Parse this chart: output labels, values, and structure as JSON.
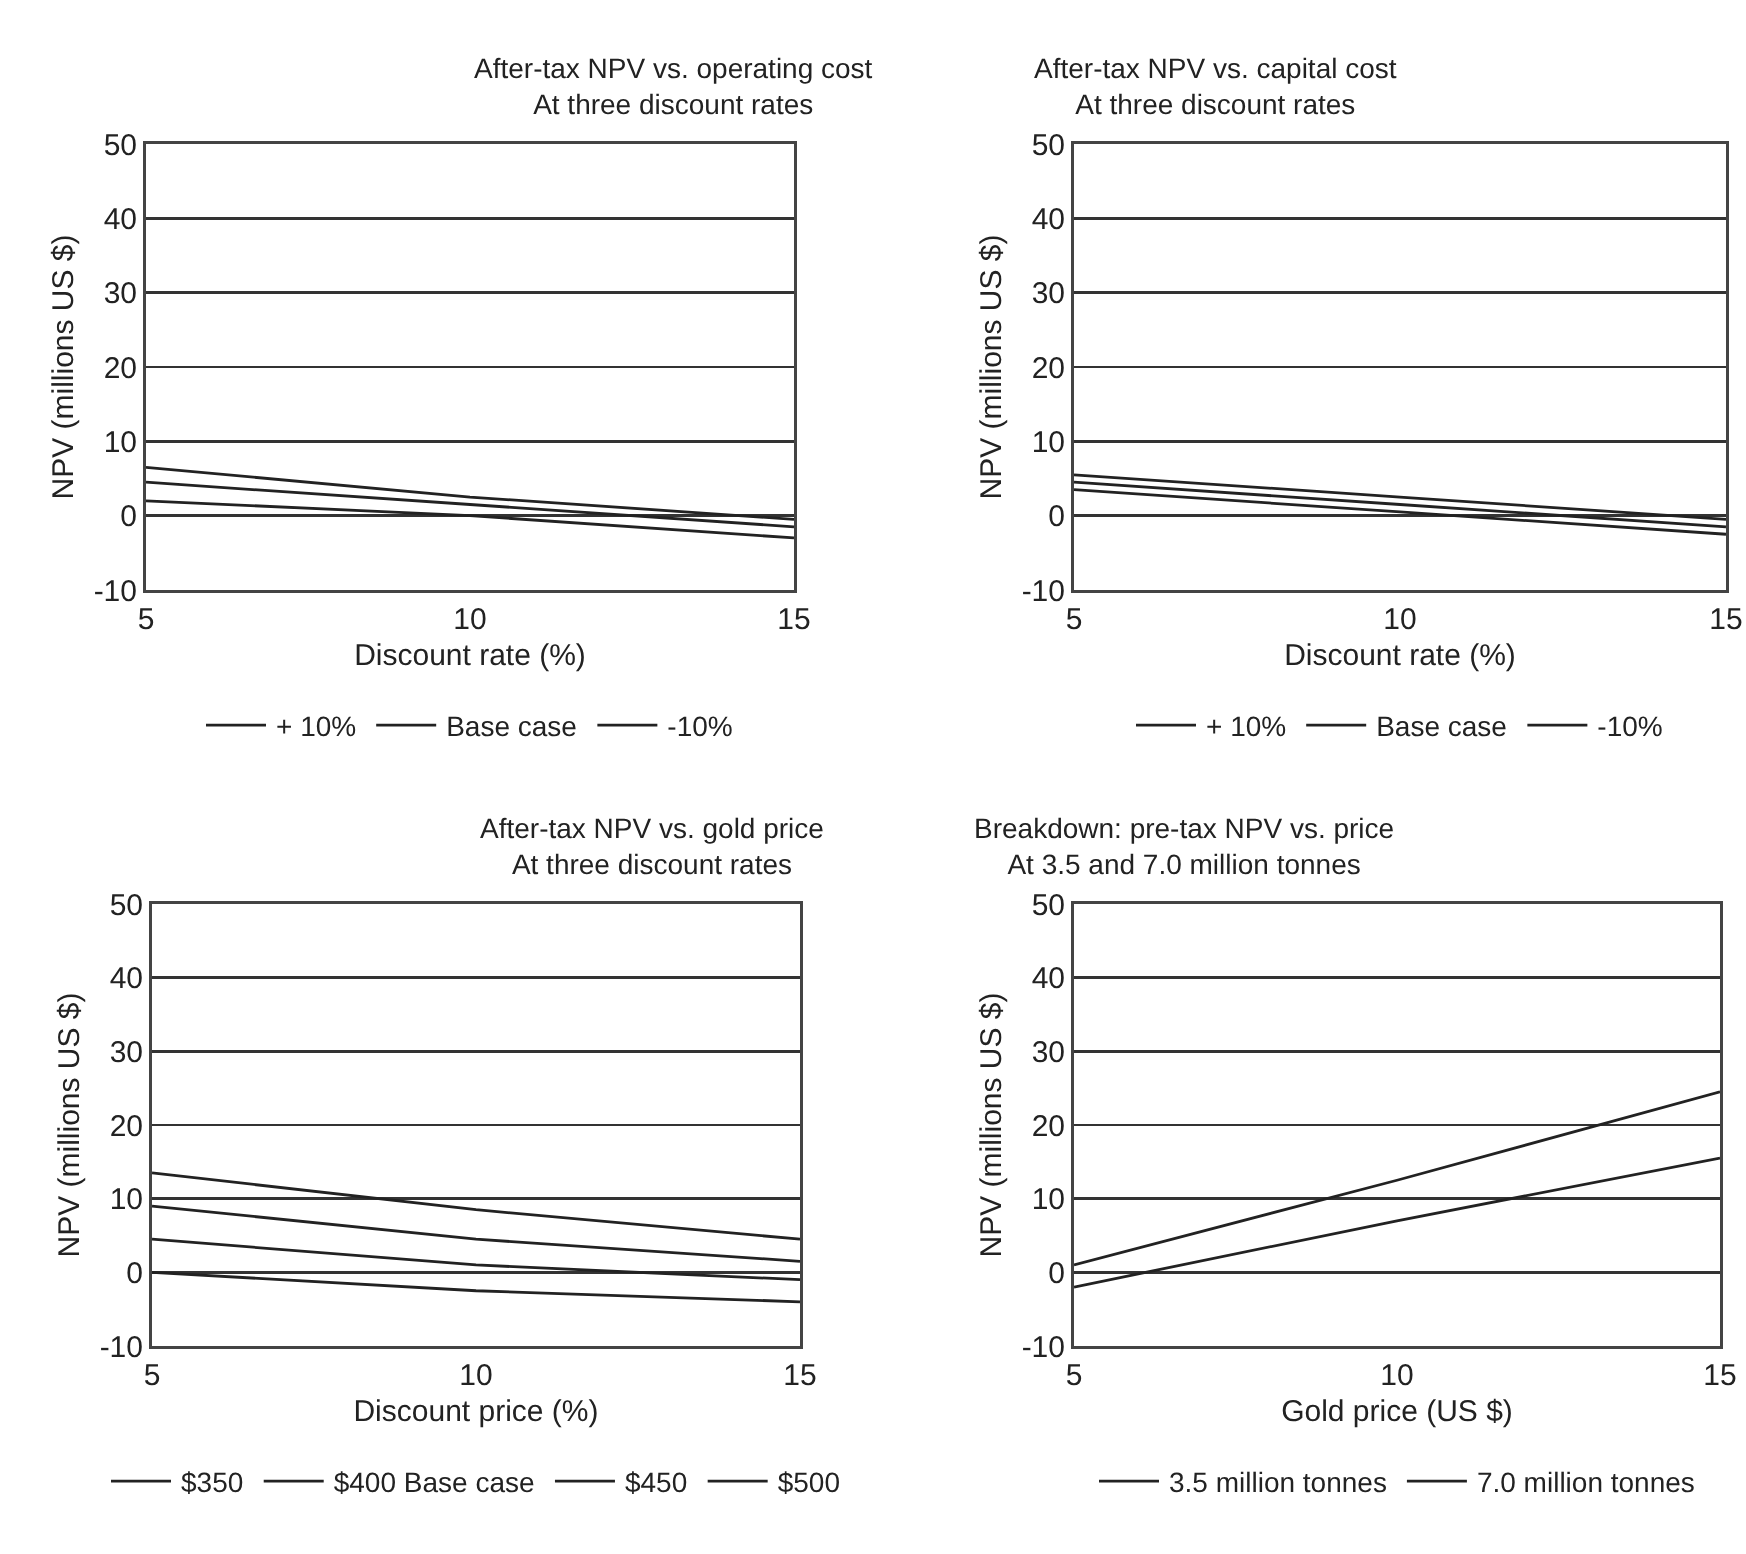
{
  "chart_data": [
    {
      "type": "line",
      "title": "After-tax NPV vs. operating cost\nAt three discount rates",
      "xlabel": "Discount rate (%)",
      "ylabel": "NPV (millions US $)",
      "x": [
        5,
        10,
        15
      ],
      "xlim": [
        5,
        15
      ],
      "xticks": [
        5,
        10,
        15
      ],
      "ylim": [
        -10,
        50
      ],
      "yticks": [
        -10,
        0,
        10,
        20,
        30,
        40,
        50
      ],
      "grid": "y",
      "legend": "bottom",
      "line_style": "solid",
      "series": [
        {
          "name": "+ 10%",
          "color": "#222222",
          "values": [
            2,
            0,
            -3
          ]
        },
        {
          "name": "Base case",
          "color": "#222222",
          "values": [
            4.5,
            1.5,
            -1.5
          ]
        },
        {
          "name": "-10%",
          "color": "#222222",
          "values": [
            6.5,
            2.5,
            -0.5
          ]
        }
      ]
    },
    {
      "type": "line",
      "title": "After-tax NPV vs. capital cost\nAt three discount rates",
      "xlabel": "Discount rate (%)",
      "ylabel": "NPV (millions US $)",
      "x": [
        5,
        10,
        15
      ],
      "xlim": [
        5,
        15
      ],
      "xticks": [
        5,
        10,
        15
      ],
      "ylim": [
        -10,
        50
      ],
      "yticks": [
        -10,
        0,
        10,
        20,
        30,
        40,
        50
      ],
      "grid": "y",
      "legend": "bottom",
      "line_style": "solid",
      "series": [
        {
          "name": "+ 10%",
          "color": "#222222",
          "values": [
            3.5,
            0.5,
            -2.5
          ]
        },
        {
          "name": "Base case",
          "color": "#222222",
          "values": [
            4.5,
            1.5,
            -1.5
          ]
        },
        {
          "name": "-10%",
          "color": "#222222",
          "values": [
            5.5,
            2.5,
            -0.5
          ]
        }
      ]
    },
    {
      "type": "line",
      "title": "After-tax NPV vs. gold price\nAt three discount rates",
      "xlabel": "Discount price (%)",
      "ylabel": "NPV (millions US $)",
      "x": [
        5,
        10,
        15
      ],
      "xlim": [
        5,
        15
      ],
      "xticks": [
        5,
        10,
        15
      ],
      "ylim": [
        -10,
        50
      ],
      "yticks": [
        -10,
        0,
        10,
        20,
        30,
        40,
        50
      ],
      "grid": "y",
      "legend": "bottom",
      "line_style": "solid",
      "series": [
        {
          "name": "$350",
          "color": "#222222",
          "values": [
            0,
            -2.5,
            -4
          ]
        },
        {
          "name": "$400 Base case",
          "color": "#222222",
          "values": [
            4.5,
            1,
            -1
          ]
        },
        {
          "name": "$450",
          "color": "#222222",
          "values": [
            9,
            4.5,
            1.5
          ]
        },
        {
          "name": "$500",
          "color": "#222222",
          "values": [
            13.5,
            8.5,
            4.5
          ]
        }
      ]
    },
    {
      "type": "line",
      "title": "Breakdown: pre-tax NPV vs. price\nAt 3.5 and 7.0 million tonnes",
      "xlabel": "Gold price (US $)",
      "ylabel": "NPV (millions US $)",
      "x": [
        5,
        10,
        15
      ],
      "xlim": [
        5,
        15
      ],
      "xticks": [
        5,
        10,
        15
      ],
      "ylim": [
        -10,
        50
      ],
      "yticks": [
        -10,
        0,
        10,
        20,
        30,
        40,
        50
      ],
      "grid": "y",
      "legend": "bottom",
      "line_style": "solid",
      "series": [
        {
          "name": "3.5 million tonnes",
          "color": "#222222",
          "values": [
            -2,
            7,
            15.5
          ]
        },
        {
          "name": "7.0 million tonnes",
          "color": "#222222",
          "values": [
            1,
            12.5,
            24.5
          ]
        }
      ]
    }
  ]
}
